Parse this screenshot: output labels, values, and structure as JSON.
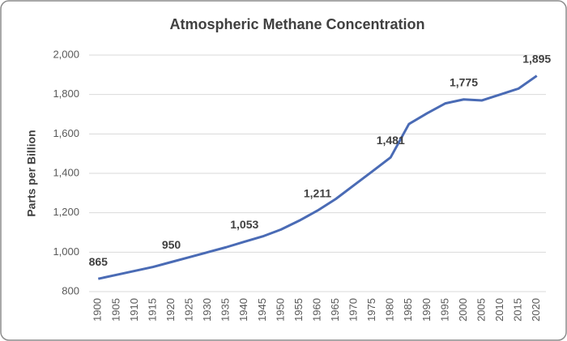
{
  "chart_data": {
    "type": "line",
    "title": "Atmospheric Methane Concentration",
    "y_label": "Parts per Billion",
    "categories": [
      "1900",
      "1905",
      "1910",
      "1915",
      "1920",
      "1925",
      "1930",
      "1935",
      "1940",
      "1945",
      "1950",
      "1955",
      "1960",
      "1965",
      "1970",
      "1975",
      "1980",
      "1985",
      "1990",
      "1995",
      "2000",
      "2005",
      "2010",
      "2015",
      "2020"
    ],
    "values": [
      865,
      885,
      905,
      925,
      950,
      975,
      1000,
      1025,
      1053,
      1080,
      1115,
      1160,
      1211,
      1270,
      1340,
      1410,
      1481,
      1650,
      1705,
      1755,
      1775,
      1770,
      1800,
      1830,
      1895
    ],
    "value_labels": [
      "865",
      null,
      null,
      null,
      "950",
      null,
      null,
      null,
      "1,053",
      null,
      null,
      null,
      "1,211",
      null,
      null,
      null,
      "1,481",
      null,
      null,
      null,
      "1,775",
      null,
      null,
      null,
      "1,895"
    ],
    "color": "#4a6bb5",
    "ylim": [
      800,
      2000
    ],
    "yticks": [
      800,
      {
        "value": 1000,
        "label": "1,000"
      },
      {
        "value": 1200,
        "label": "1,200"
      },
      {
        "value": 1400,
        "label": "1,400"
      },
      {
        "value": 1600,
        "label": "1,600"
      },
      {
        "value": 1800,
        "label": "1,800"
      },
      {
        "value": 2000,
        "label": "2,000"
      }
    ],
    "grid": true
  }
}
